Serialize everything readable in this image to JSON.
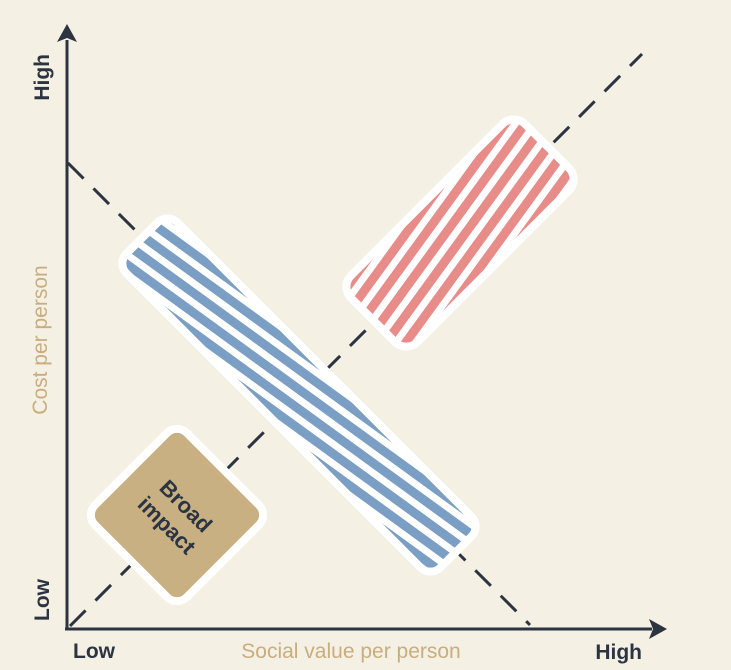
{
  "axes": {
    "x_title": "Social value per person",
    "y_title": "Cost per person",
    "x_low": "Low",
    "x_high": "High",
    "y_low": "Low",
    "y_high": "High"
  },
  "regions": {
    "broad_impact": {
      "label_line1": "Broad",
      "label_line2": "impact"
    }
  },
  "colors": {
    "background": "#f4f0e4",
    "axis": "#2b3440",
    "axis_title": "#c8ad7f",
    "blue_stripe": "#7a9ec4",
    "red_stripe": "#e88c8a",
    "broad_impact_fill": "#c9b083",
    "outline": "#ffffff"
  }
}
